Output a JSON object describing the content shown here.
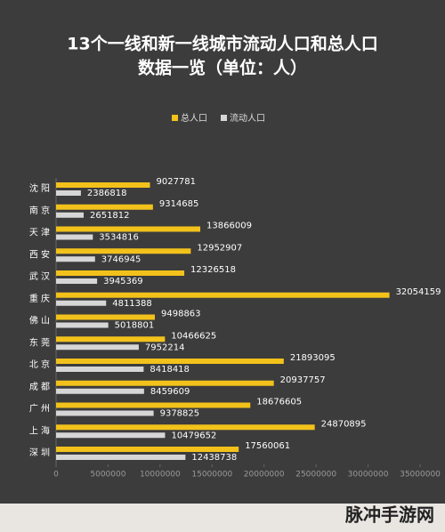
{
  "chart_data": {
    "type": "bar",
    "orientation": "horizontal",
    "title": [
      "13个一线和新一线城市流动人口和总人口",
      "数据一览（单位：人）"
    ],
    "categories": [
      "沈 阳",
      "南 京",
      "天 津",
      "西 安",
      "武 汉",
      "重 庆",
      "佛 山",
      "东 莞",
      "北 京",
      "成 都",
      "广 州",
      "上 海",
      "深 圳"
    ],
    "series": [
      {
        "name": "总人口",
        "color": "#f2c21b",
        "values": [
          9027781,
          9314685,
          13866009,
          12952907,
          12326518,
          32054159,
          9498863,
          10466625,
          21893095,
          20937757,
          18676605,
          24870895,
          17560061
        ]
      },
      {
        "name": "流动人口",
        "color": "#d6d6d6",
        "values": [
          2386818,
          2651812,
          3534816,
          3746945,
          3945369,
          4811388,
          5018801,
          7952214,
          8418418,
          8459609,
          9378825,
          10479652,
          12438738
        ]
      }
    ],
    "xlim": [
      0,
      35000000
    ],
    "xticks": [
      0,
      5000000,
      10000000,
      15000000,
      20000000,
      25000000,
      30000000,
      35000000
    ],
    "legend": "top",
    "watermark": "脉冲手游网"
  }
}
